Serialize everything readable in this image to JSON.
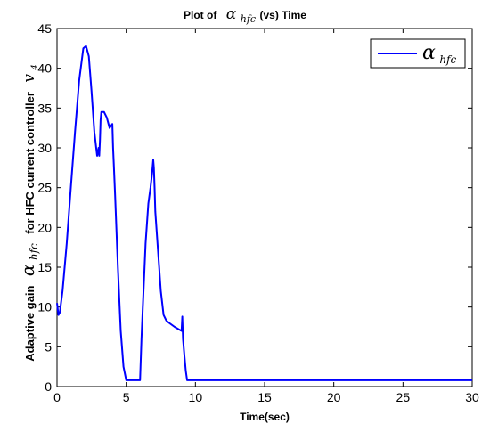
{
  "chart_data": {
    "type": "line",
    "title_prefix": "Plot of",
    "title_symbol": "α",
    "title_subscript": "hfc",
    "title_suffix": "(vs) Time",
    "xlabel": "Time(sec)",
    "ylabel_prefix": "Adaptive gain",
    "ylabel_symbol": "α",
    "ylabel_subscript": "hfc",
    "ylabel_suffix": "for HFC current controller",
    "ylabel_tail_symbol": "v",
    "ylabel_tail_subscript": "4",
    "xlim": [
      0,
      30
    ],
    "ylim": [
      0,
      45
    ],
    "x_ticks": [
      "0",
      "5",
      "10",
      "15",
      "20",
      "25",
      "30"
    ],
    "y_ticks": [
      "0",
      "5",
      "10",
      "15",
      "20",
      "25",
      "30",
      "35",
      "40",
      "45"
    ],
    "grid": false,
    "legend_position": "top-right",
    "series": [
      {
        "name_symbol": "α",
        "name_subscript": "hfc",
        "color": "#0000ff",
        "x": [
          0,
          0.1,
          0.2,
          0.4,
          0.7,
          1.0,
          1.3,
          1.6,
          1.9,
          2.1,
          2.3,
          2.5,
          2.7,
          2.9,
          3.0,
          3.05,
          3.1,
          3.15,
          3.2,
          3.4,
          3.6,
          3.8,
          4.0,
          4.05,
          4.1,
          4.2,
          4.4,
          4.6,
          4.8,
          5.0,
          5.2,
          5.5,
          5.8,
          6.0,
          6.1,
          6.2,
          6.4,
          6.6,
          6.75,
          6.85,
          6.95,
          7.0,
          7.05,
          7.1,
          7.3,
          7.5,
          7.7,
          7.9,
          8.1,
          8.5,
          8.8,
          9.0,
          9.05,
          9.1,
          9.2,
          9.3,
          9.4,
          30
        ],
        "y": [
          10.5,
          9.0,
          9.3,
          12.0,
          18.0,
          25.0,
          32.0,
          38.5,
          42.5,
          42.8,
          41.5,
          37.0,
          32.0,
          29.0,
          30.0,
          29.0,
          31.0,
          33.5,
          34.5,
          34.5,
          33.8,
          32.5,
          33.0,
          30.0,
          28.0,
          24.0,
          15.0,
          7.0,
          2.5,
          0.8,
          0.8,
          0.8,
          0.8,
          0.8,
          6.0,
          10.0,
          18.0,
          23.0,
          25.0,
          26.5,
          28.5,
          27.5,
          25.0,
          22.0,
          17.0,
          12.0,
          9.0,
          8.3,
          8.0,
          7.5,
          7.2,
          7.0,
          8.8,
          6.0,
          4.0,
          2.0,
          0.8,
          0.8
        ]
      }
    ]
  }
}
